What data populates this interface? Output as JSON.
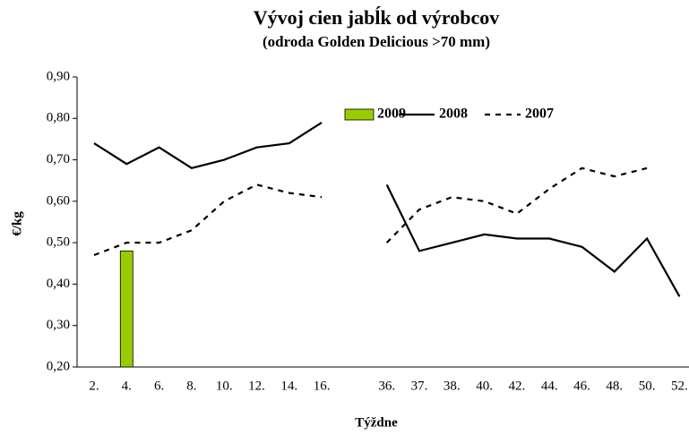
{
  "chart_data": {
    "type": "line",
    "title": "Vývoj cien jabĺk od výrobcov",
    "subtitle": "(odroda Golden Delicious  >70 mm)",
    "xlabel": "Týždne",
    "ylabel": "€/kg",
    "categories": [
      "2.",
      "4.",
      "6.",
      "8.",
      "10.",
      "12.",
      "14.",
      "16.",
      null,
      "36.",
      "37.",
      "38.",
      "40.",
      "42.",
      "44.",
      "46.",
      "48.",
      "50.",
      "52."
    ],
    "series": [
      {
        "name": "2009",
        "type": "bar",
        "color": "#99cc00",
        "values": [
          null,
          0.48,
          null,
          null,
          null,
          null,
          null,
          null,
          null,
          null,
          null,
          null,
          null,
          null,
          null,
          null,
          null,
          null,
          null
        ]
      },
      {
        "name": "2008",
        "type": "line",
        "color": "#000000",
        "dash": false,
        "values": [
          0.74,
          0.69,
          0.73,
          0.68,
          0.7,
          0.73,
          0.74,
          0.79,
          null,
          0.64,
          0.48,
          0.5,
          0.52,
          0.51,
          0.51,
          0.49,
          0.43,
          0.51,
          0.37
        ]
      },
      {
        "name": "2007",
        "type": "line",
        "color": "#000000",
        "dash": true,
        "values": [
          0.47,
          0.5,
          0.5,
          0.53,
          0.6,
          0.64,
          0.62,
          0.61,
          null,
          0.5,
          0.58,
          0.61,
          0.6,
          0.57,
          0.63,
          0.68,
          0.66,
          0.68,
          null
        ]
      }
    ],
    "ylim": [
      0.2,
      0.9
    ],
    "yticks": [
      {
        "value": 0.2,
        "label": "0,20"
      },
      {
        "value": 0.3,
        "label": "0,30"
      },
      {
        "value": 0.4,
        "label": "0,40"
      },
      {
        "value": 0.5,
        "label": "0,50"
      },
      {
        "value": 0.6,
        "label": "0,60"
      },
      {
        "value": 0.7,
        "label": "0,70"
      },
      {
        "value": 0.8,
        "label": "0,80"
      },
      {
        "value": 0.9,
        "label": "0,90"
      }
    ],
    "grid": false,
    "legend": "top"
  }
}
